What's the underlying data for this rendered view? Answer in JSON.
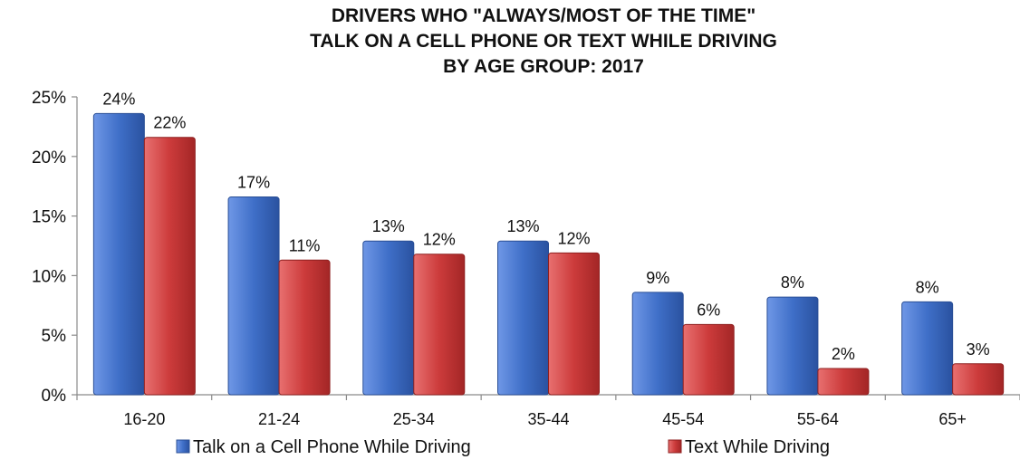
{
  "chart_data": {
    "type": "bar",
    "title_lines": [
      "DRIVERS WHO \"ALWAYS/MOST OF THE TIME\"",
      "TALK ON A CELL PHONE OR TEXT WHILE DRIVING",
      "BY AGE GROUP:  2017"
    ],
    "categories": [
      "16-20",
      "21-24",
      "25-34",
      "35-44",
      "45-54",
      "55-64",
      "65+"
    ],
    "series": [
      {
        "name": "Talk on a Cell Phone While Driving",
        "color": "#3f6fc8",
        "values": [
          23.6,
          16.6,
          12.9,
          12.9,
          8.6,
          8.2,
          7.8
        ],
        "labels": [
          "24%",
          "17%",
          "13%",
          "13%",
          "9%",
          "8%",
          "8%"
        ]
      },
      {
        "name": "Text While Driving",
        "color": "#cc3b3b",
        "values": [
          21.6,
          11.3,
          11.8,
          11.9,
          5.9,
          2.2,
          2.6
        ],
        "labels": [
          "22%",
          "11%",
          "12%",
          "12%",
          "6%",
          "2%",
          "3%"
        ]
      }
    ],
    "y_ticks": [
      "0%",
      "5%",
      "10%",
      "15%",
      "20%",
      "25%"
    ],
    "ylim": [
      0,
      25
    ],
    "grid": false,
    "legend_position": "bottom"
  }
}
